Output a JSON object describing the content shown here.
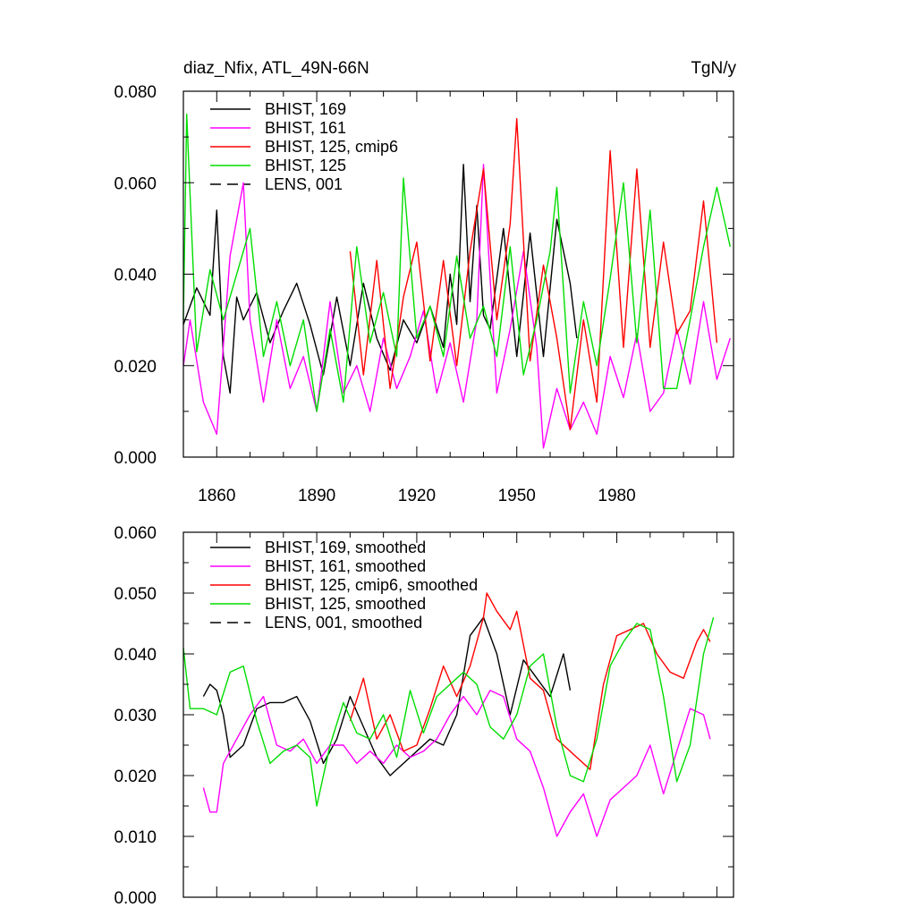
{
  "colors": {
    "black": "#000000",
    "magenta": "#ff00ff",
    "red": "#ff0000",
    "green": "#00dd00"
  },
  "chart_data": [
    {
      "type": "line",
      "title": "diaz_Nfix, ATL_49N-66N",
      "units": "TgN/y",
      "xlim": [
        1850,
        2015
      ],
      "ylim": [
        0,
        0.08
      ],
      "xticks": [
        "1860",
        "1890",
        "1920",
        "1950",
        "1980"
      ],
      "yticks": [
        "0.000",
        "0.020",
        "0.040",
        "0.060",
        "0.080"
      ],
      "legend": [
        {
          "label": "BHIST, 169",
          "color": "#000000",
          "dash": false
        },
        {
          "label": "BHIST, 161",
          "color": "#ff00ff",
          "dash": false
        },
        {
          "label": "BHIST, 125, cmip6",
          "color": "#ff0000",
          "dash": false
        },
        {
          "label": "BHIST, 125",
          "color": "#00dd00",
          "dash": false
        },
        {
          "label": "LENS, 001",
          "color": "#000000",
          "dash": true
        }
      ],
      "series": [
        {
          "name": "BHIST, 169",
          "color": "#000000",
          "x": [
            1850,
            1854,
            1858,
            1860,
            1862,
            1864,
            1866,
            1868,
            1872,
            1876,
            1880,
            1884,
            1888,
            1892,
            1896,
            1900,
            1904,
            1908,
            1912,
            1916,
            1920,
            1924,
            1928,
            1930,
            1932,
            1934,
            1936,
            1938,
            1940,
            1942,
            1946,
            1950,
            1954,
            1958,
            1962,
            1966,
            1968
          ],
          "y": [
            0.029,
            0.037,
            0.031,
            0.054,
            0.022,
            0.014,
            0.035,
            0.03,
            0.036,
            0.025,
            0.032,
            0.038,
            0.029,
            0.018,
            0.035,
            0.02,
            0.038,
            0.026,
            0.019,
            0.03,
            0.025,
            0.033,
            0.024,
            0.04,
            0.029,
            0.064,
            0.034,
            0.055,
            0.031,
            0.028,
            0.05,
            0.022,
            0.049,
            0.022,
            0.052,
            0.038,
            0.026
          ]
        },
        {
          "name": "BHIST, 161",
          "color": "#ff00ff",
          "x": [
            1850,
            1852,
            1856,
            1860,
            1864,
            1868,
            1870,
            1874,
            1878,
            1882,
            1886,
            1890,
            1894,
            1898,
            1902,
            1906,
            1910,
            1914,
            1918,
            1922,
            1926,
            1930,
            1934,
            1938,
            1940,
            1944,
            1948,
            1952,
            1956,
            1958,
            1962,
            1966,
            1970,
            1974,
            1978,
            1982,
            1986,
            1990,
            1994,
            1998,
            2002,
            2006,
            2010,
            2014
          ],
          "y": [
            0.02,
            0.03,
            0.012,
            0.005,
            0.044,
            0.06,
            0.03,
            0.012,
            0.03,
            0.015,
            0.022,
            0.01,
            0.034,
            0.014,
            0.02,
            0.01,
            0.026,
            0.015,
            0.022,
            0.032,
            0.014,
            0.025,
            0.012,
            0.03,
            0.064,
            0.014,
            0.028,
            0.045,
            0.024,
            0.002,
            0.015,
            0.006,
            0.012,
            0.005,
            0.022,
            0.013,
            0.027,
            0.01,
            0.014,
            0.028,
            0.016,
            0.034,
            0.017,
            0.026
          ]
        },
        {
          "name": "BHIST, 125, cmip6",
          "color": "#ff0000",
          "x": [
            1900,
            1904,
            1908,
            1912,
            1916,
            1920,
            1924,
            1928,
            1932,
            1936,
            1940,
            1944,
            1948,
            1950,
            1954,
            1958,
            1962,
            1966,
            1970,
            1974,
            1978,
            1982,
            1986,
            1990,
            1994,
            1998,
            2002,
            2006,
            2010
          ],
          "y": [
            0.045,
            0.018,
            0.043,
            0.015,
            0.035,
            0.047,
            0.021,
            0.043,
            0.02,
            0.045,
            0.063,
            0.03,
            0.051,
            0.074,
            0.021,
            0.042,
            0.026,
            0.006,
            0.03,
            0.012,
            0.067,
            0.024,
            0.063,
            0.024,
            0.047,
            0.027,
            0.032,
            0.056,
            0.025
          ]
        },
        {
          "name": "BHIST, 125",
          "color": "#00dd00",
          "x": [
            1850,
            1851,
            1854,
            1858,
            1862,
            1866,
            1870,
            1874,
            1878,
            1882,
            1886,
            1890,
            1894,
            1898,
            1902,
            1906,
            1910,
            1914,
            1916,
            1920,
            1924,
            1928,
            1932,
            1936,
            1940,
            1944,
            1948,
            1952,
            1956,
            1960,
            1962,
            1966,
            1970,
            1974,
            1978,
            1982,
            1986,
            1990,
            1994,
            1998,
            2002,
            2006,
            2010,
            2014
          ],
          "y": [
            0.03,
            0.075,
            0.023,
            0.041,
            0.03,
            0.04,
            0.05,
            0.022,
            0.034,
            0.02,
            0.03,
            0.01,
            0.028,
            0.012,
            0.046,
            0.025,
            0.036,
            0.022,
            0.061,
            0.026,
            0.033,
            0.022,
            0.044,
            0.026,
            0.033,
            0.022,
            0.046,
            0.018,
            0.03,
            0.045,
            0.059,
            0.014,
            0.034,
            0.02,
            0.039,
            0.06,
            0.025,
            0.054,
            0.015,
            0.015,
            0.03,
            0.046,
            0.059,
            0.046
          ]
        }
      ]
    },
    {
      "type": "line",
      "xlim": [
        1850,
        2015
      ],
      "ylim": [
        0,
        0.06
      ],
      "xticks": [],
      "yticks": [
        "0.000",
        "0.010",
        "0.020",
        "0.030",
        "0.040",
        "0.050",
        "0.060"
      ],
      "legend": [
        {
          "label": "BHIST, 169, smoothed",
          "color": "#000000",
          "dash": false
        },
        {
          "label": "BHIST, 161, smoothed",
          "color": "#ff00ff",
          "dash": false
        },
        {
          "label": "BHIST, 125, cmip6, smoothed",
          "color": "#ff0000",
          "dash": false
        },
        {
          "label": "BHIST, 125, smoothed",
          "color": "#00dd00",
          "dash": false
        },
        {
          "label": "LENS, 001, smoothed",
          "color": "#000000",
          "dash": true
        }
      ],
      "series": [
        {
          "name": "BHIST, 169, smoothed",
          "color": "#000000",
          "x": [
            1856,
            1858,
            1860,
            1862,
            1864,
            1868,
            1872,
            1876,
            1880,
            1884,
            1888,
            1892,
            1896,
            1900,
            1904,
            1908,
            1912,
            1916,
            1920,
            1924,
            1928,
            1932,
            1936,
            1940,
            1944,
            1948,
            1952,
            1956,
            1960,
            1964,
            1966
          ],
          "y": [
            0.033,
            0.035,
            0.034,
            0.03,
            0.023,
            0.025,
            0.031,
            0.032,
            0.032,
            0.033,
            0.029,
            0.022,
            0.026,
            0.033,
            0.028,
            0.023,
            0.02,
            0.022,
            0.024,
            0.026,
            0.025,
            0.03,
            0.043,
            0.046,
            0.04,
            0.03,
            0.039,
            0.036,
            0.033,
            0.04,
            0.034
          ]
        },
        {
          "name": "BHIST, 161, smoothed",
          "color": "#ff00ff",
          "x": [
            1856,
            1858,
            1860,
            1862,
            1866,
            1870,
            1874,
            1878,
            1882,
            1886,
            1890,
            1894,
            1898,
            1902,
            1906,
            1910,
            1914,
            1918,
            1922,
            1926,
            1930,
            1934,
            1938,
            1942,
            1946,
            1950,
            1954,
            1958,
            1962,
            1966,
            1970,
            1974,
            1978,
            1982,
            1986,
            1990,
            1994,
            1998,
            2002,
            2006,
            2008
          ],
          "y": [
            0.018,
            0.014,
            0.014,
            0.022,
            0.026,
            0.03,
            0.033,
            0.025,
            0.024,
            0.026,
            0.022,
            0.025,
            0.025,
            0.022,
            0.024,
            0.022,
            0.025,
            0.023,
            0.024,
            0.026,
            0.03,
            0.033,
            0.03,
            0.034,
            0.033,
            0.026,
            0.024,
            0.018,
            0.01,
            0.014,
            0.017,
            0.01,
            0.016,
            0.018,
            0.02,
            0.025,
            0.017,
            0.024,
            0.031,
            0.03,
            0.026
          ]
        },
        {
          "name": "BHIST, 125, cmip6, smoothed",
          "color": "#ff0000",
          "x": [
            1900,
            1904,
            1908,
            1912,
            1916,
            1920,
            1924,
            1928,
            1932,
            1936,
            1940,
            1941,
            1944,
            1948,
            1950,
            1954,
            1958,
            1962,
            1966,
            1968,
            1972,
            1976,
            1980,
            1984,
            1988,
            1992,
            1996,
            2000,
            2004,
            2006,
            2008
          ],
          "y": [
            0.029,
            0.036,
            0.026,
            0.03,
            0.024,
            0.025,
            0.031,
            0.038,
            0.033,
            0.038,
            0.046,
            0.05,
            0.047,
            0.044,
            0.047,
            0.036,
            0.034,
            0.026,
            0.024,
            0.023,
            0.021,
            0.035,
            0.043,
            0.044,
            0.045,
            0.04,
            0.037,
            0.036,
            0.042,
            0.044,
            0.042
          ]
        },
        {
          "name": "BHIST, 125, smoothed",
          "color": "#00dd00",
          "x": [
            1850,
            1852,
            1856,
            1860,
            1864,
            1868,
            1872,
            1876,
            1880,
            1884,
            1888,
            1890,
            1894,
            1898,
            1902,
            1906,
            1910,
            1914,
            1918,
            1922,
            1926,
            1930,
            1934,
            1938,
            1942,
            1946,
            1950,
            1954,
            1958,
            1962,
            1966,
            1970,
            1974,
            1978,
            1982,
            1986,
            1990,
            1994,
            1998,
            2002,
            2006,
            2009
          ],
          "y": [
            0.041,
            0.031,
            0.031,
            0.03,
            0.037,
            0.038,
            0.029,
            0.022,
            0.024,
            0.025,
            0.023,
            0.015,
            0.025,
            0.032,
            0.027,
            0.026,
            0.03,
            0.023,
            0.034,
            0.027,
            0.033,
            0.035,
            0.037,
            0.035,
            0.028,
            0.026,
            0.03,
            0.038,
            0.04,
            0.028,
            0.02,
            0.019,
            0.026,
            0.038,
            0.042,
            0.045,
            0.044,
            0.033,
            0.019,
            0.025,
            0.04,
            0.046
          ]
        }
      ]
    }
  ]
}
